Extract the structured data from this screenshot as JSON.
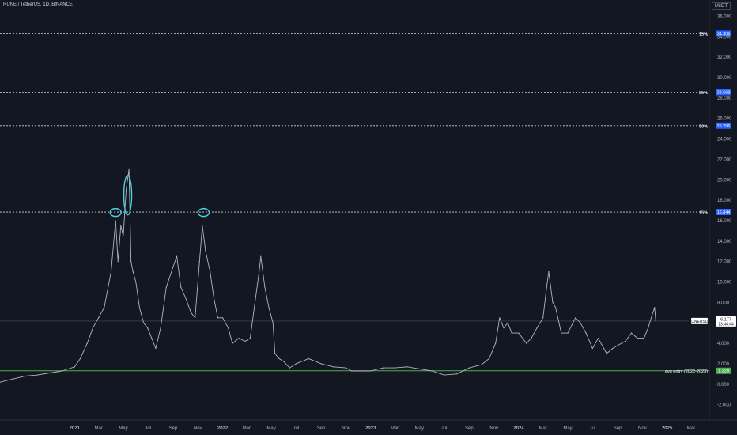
{
  "header": {
    "symbol_title": "RUNE / TetherUS, 1D, BINANCE",
    "currency": "USDT"
  },
  "chart_data": {
    "type": "line",
    "symbol": "RUNEUSDT",
    "ylim": [
      -3.5,
      36.5
    ],
    "y_ticks": [
      "-2.000",
      "0.000",
      "2.000",
      "4.000",
      "6.000",
      "8.000",
      "10.000",
      "12.000",
      "14.000",
      "16.000",
      "18.000",
      "20.000",
      "22.000",
      "24.000",
      "26.000",
      "28.000",
      "30.000",
      "32.000",
      "34.000",
      "36.000"
    ],
    "x_ticks": [
      "2021",
      "Mar",
      "May",
      "Jul",
      "Sep",
      "Nov",
      "2022",
      "Mar",
      "May",
      "Jul",
      "Sep",
      "Nov",
      "2023",
      "Mar",
      "May",
      "Jul",
      "Sep",
      "Nov",
      "2024",
      "Mar",
      "May",
      "Jul",
      "Sep",
      "Nov",
      "2025",
      "Mar"
    ],
    "x_range": [
      "2020-07-01",
      "2025-04-15"
    ],
    "series": [
      {
        "name": "RUNEUSDT",
        "color": "#b2b5be",
        "points": [
          [
            "2020-07-01",
            0.2
          ],
          [
            "2020-08-01",
            0.5
          ],
          [
            "2020-09-01",
            0.8
          ],
          [
            "2020-10-01",
            0.9
          ],
          [
            "2020-11-01",
            1.1
          ],
          [
            "2020-12-01",
            1.3
          ],
          [
            "2021-01-01",
            1.7
          ],
          [
            "2021-01-15",
            2.5
          ],
          [
            "2021-02-01",
            4.0
          ],
          [
            "2021-02-15",
            5.5
          ],
          [
            "2021-03-01",
            6.5
          ],
          [
            "2021-03-15",
            7.5
          ],
          [
            "2021-04-01",
            11.0
          ],
          [
            "2021-04-12",
            16.0
          ],
          [
            "2021-04-18",
            12.0
          ],
          [
            "2021-04-25",
            15.5
          ],
          [
            "2021-05-01",
            14.5
          ],
          [
            "2021-05-08",
            19.0
          ],
          [
            "2021-05-15",
            21.0
          ],
          [
            "2021-05-20",
            12.0
          ],
          [
            "2021-05-25",
            11.0
          ],
          [
            "2021-06-01",
            10.0
          ],
          [
            "2021-06-10",
            7.5
          ],
          [
            "2021-06-20",
            6.0
          ],
          [
            "2021-06-30",
            5.5
          ],
          [
            "2021-07-10",
            4.5
          ],
          [
            "2021-07-20",
            3.5
          ],
          [
            "2021-08-01",
            5.5
          ],
          [
            "2021-08-15",
            9.5
          ],
          [
            "2021-09-01",
            11.5
          ],
          [
            "2021-09-10",
            12.5
          ],
          [
            "2021-09-20",
            9.5
          ],
          [
            "2021-10-01",
            8.5
          ],
          [
            "2021-10-15",
            7.0
          ],
          [
            "2021-10-25",
            6.5
          ],
          [
            "2021-11-05",
            12.0
          ],
          [
            "2021-11-12",
            15.5
          ],
          [
            "2021-11-20",
            13.0
          ],
          [
            "2021-12-01",
            11.0
          ],
          [
            "2021-12-10",
            8.5
          ],
          [
            "2021-12-20",
            6.5
          ],
          [
            "2022-01-01",
            6.5
          ],
          [
            "2022-01-15",
            5.5
          ],
          [
            "2022-01-25",
            4.0
          ],
          [
            "2022-02-10",
            4.5
          ],
          [
            "2022-02-25",
            4.2
          ],
          [
            "2022-03-10",
            4.5
          ],
          [
            "2022-03-20",
            7.5
          ],
          [
            "2022-04-01",
            11.0
          ],
          [
            "2022-04-05",
            12.5
          ],
          [
            "2022-04-15",
            9.5
          ],
          [
            "2022-04-25",
            7.5
          ],
          [
            "2022-05-05",
            6.0
          ],
          [
            "2022-05-10",
            3.0
          ],
          [
            "2022-05-20",
            2.5
          ],
          [
            "2022-06-01",
            2.2
          ],
          [
            "2022-06-15",
            1.6
          ],
          [
            "2022-07-01",
            2.0
          ],
          [
            "2022-08-01",
            2.5
          ],
          [
            "2022-09-01",
            2.0
          ],
          [
            "2022-10-01",
            1.7
          ],
          [
            "2022-11-01",
            1.6
          ],
          [
            "2022-11-15",
            1.3
          ],
          [
            "2022-12-01",
            1.3
          ],
          [
            "2023-01-01",
            1.3
          ],
          [
            "2023-02-01",
            1.6
          ],
          [
            "2023-03-01",
            1.6
          ],
          [
            "2023-04-01",
            1.7
          ],
          [
            "2023-05-01",
            1.5
          ],
          [
            "2023-06-01",
            1.3
          ],
          [
            "2023-07-01",
            0.9
          ],
          [
            "2023-08-01",
            1.0
          ],
          [
            "2023-09-01",
            1.6
          ],
          [
            "2023-10-01",
            1.9
          ],
          [
            "2023-10-20",
            2.5
          ],
          [
            "2023-11-05",
            4.0
          ],
          [
            "2023-11-15",
            6.5
          ],
          [
            "2023-11-25",
            5.5
          ],
          [
            "2023-12-05",
            6.0
          ],
          [
            "2023-12-15",
            5.0
          ],
          [
            "2024-01-01",
            5.0
          ],
          [
            "2024-01-20",
            4.0
          ],
          [
            "2024-02-01",
            4.5
          ],
          [
            "2024-02-15",
            5.5
          ],
          [
            "2024-03-01",
            6.5
          ],
          [
            "2024-03-10",
            9.5
          ],
          [
            "2024-03-15",
            11.0
          ],
          [
            "2024-03-25",
            8.0
          ],
          [
            "2024-04-01",
            7.5
          ],
          [
            "2024-04-15",
            5.0
          ],
          [
            "2024-05-01",
            5.0
          ],
          [
            "2024-05-20",
            6.5
          ],
          [
            "2024-06-01",
            6.0
          ],
          [
            "2024-06-15",
            5.0
          ],
          [
            "2024-07-01",
            3.5
          ],
          [
            "2024-07-15",
            4.5
          ],
          [
            "2024-08-05",
            3.0
          ],
          [
            "2024-08-20",
            3.5
          ],
          [
            "2024-09-01",
            3.8
          ],
          [
            "2024-09-20",
            4.2
          ],
          [
            "2024-10-05",
            5.0
          ],
          [
            "2024-10-20",
            4.5
          ],
          [
            "2024-11-05",
            4.5
          ],
          [
            "2024-11-15",
            5.5
          ],
          [
            "2024-11-25",
            6.8
          ],
          [
            "2024-12-01",
            7.5
          ],
          [
            "2024-12-04",
            6.2
          ]
        ]
      }
    ],
    "levels": [
      {
        "value": 34.306,
        "label": "15%",
        "price": "34.306",
        "style": "dashed",
        "color": "#d1d4dc",
        "badge": "#2962ff"
      },
      {
        "value": 28.569,
        "label": "25%",
        "price": "28.569",
        "style": "dashed",
        "color": "#d1d4dc",
        "badge": "#2962ff"
      },
      {
        "value": 25.296,
        "label": "50%",
        "price": "25.296",
        "style": "dashed",
        "color": "#d1d4dc",
        "badge": "#2962ff"
      },
      {
        "value": 16.844,
        "label": "15%",
        "price": "16.844",
        "style": "dashed",
        "color": "#d1d4dc",
        "badge": "#2962ff"
      },
      {
        "value": 1.32,
        "label": "avg entry (2022-2023)",
        "price": "1.320",
        "style": "solid",
        "color": "#4caf50",
        "badge": "#4caf50"
      }
    ],
    "current_price": {
      "value": 6.177,
      "price": "6.177",
      "countdown": "13:44:44"
    },
    "annotations": [
      {
        "type": "ellipse",
        "date": "2021-04-12",
        "value": 16.8,
        "color": "#4dd0e1"
      },
      {
        "type": "ellipse",
        "date": "2021-05-12",
        "value": 18.5,
        "color": "#4dd0e1"
      },
      {
        "type": "ellipse",
        "date": "2021-11-15",
        "value": 16.8,
        "color": "#4dd0e1"
      }
    ],
    "grid": false,
    "background": "#131722"
  }
}
